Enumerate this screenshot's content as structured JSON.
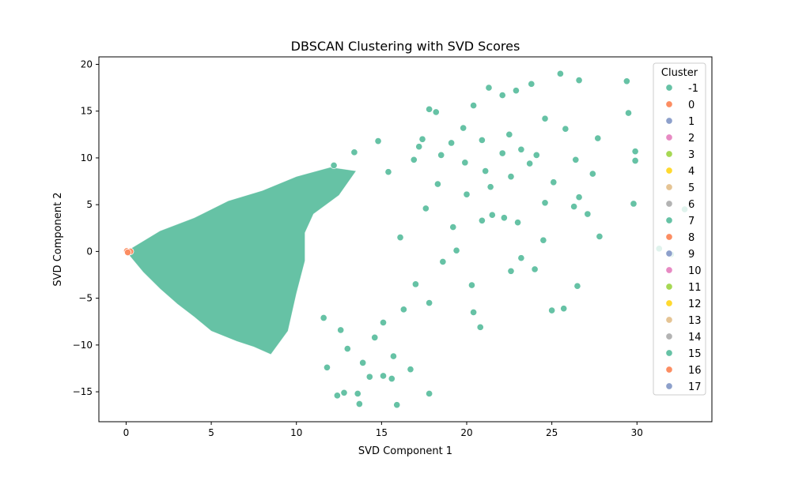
{
  "chart_data": {
    "type": "scatter",
    "title": "DBSCAN Clustering with SVD Scores",
    "xlabel": "SVD Component 1",
    "ylabel": "SVD Component 2",
    "xlim": [
      -1.6,
      34.4
    ],
    "ylim": [
      -18.2,
      20.8
    ],
    "xticks": [
      0,
      5,
      10,
      15,
      20,
      25,
      30
    ],
    "yticks": [
      -15,
      -10,
      -5,
      0,
      5,
      10,
      15,
      20
    ],
    "grid": false,
    "legend": {
      "title": "Cluster",
      "placement": "top-right",
      "entries": [
        {
          "label": "-1",
          "color": "#66c2a5"
        },
        {
          "label": "0",
          "color": "#fc8d62"
        },
        {
          "label": "1",
          "color": "#8da0cb"
        },
        {
          "label": "2",
          "color": "#e78ac3"
        },
        {
          "label": "3",
          "color": "#a6d854"
        },
        {
          "label": "4",
          "color": "#ffd92f"
        },
        {
          "label": "5",
          "color": "#e5c494"
        },
        {
          "label": "6",
          "color": "#b3b3b3"
        },
        {
          "label": "7",
          "color": "#66c2a5"
        },
        {
          "label": "8",
          "color": "#fc8d62"
        },
        {
          "label": "9",
          "color": "#8da0cb"
        },
        {
          "label": "10",
          "color": "#e78ac3"
        },
        {
          "label": "11",
          "color": "#a6d854"
        },
        {
          "label": "12",
          "color": "#ffd92f"
        },
        {
          "label": "13",
          "color": "#e5c494"
        },
        {
          "label": "14",
          "color": "#b3b3b3"
        },
        {
          "label": "15",
          "color": "#66c2a5"
        },
        {
          "label": "16",
          "color": "#fc8d62"
        },
        {
          "label": "17",
          "color": "#8da0cb"
        }
      ]
    },
    "series": [
      {
        "cluster": "-1",
        "color": "#66c2a5",
        "points": [
          [
            25.5,
            19.0
          ],
          [
            29.4,
            18.2
          ],
          [
            26.6,
            18.3
          ],
          [
            23.8,
            17.9
          ],
          [
            21.3,
            17.5
          ],
          [
            22.9,
            17.2
          ],
          [
            22.1,
            16.7
          ],
          [
            20.4,
            15.6
          ],
          [
            17.8,
            15.2
          ],
          [
            18.2,
            14.9
          ],
          [
            29.5,
            14.8
          ],
          [
            24.6,
            14.2
          ],
          [
            25.8,
            13.1
          ],
          [
            27.7,
            12.1
          ],
          [
            19.8,
            13.2
          ],
          [
            22.5,
            12.5
          ],
          [
            20.9,
            11.9
          ],
          [
            17.4,
            12.0
          ],
          [
            17.2,
            11.2
          ],
          [
            22.1,
            10.5
          ],
          [
            23.2,
            10.9
          ],
          [
            29.9,
            10.7
          ],
          [
            29.9,
            9.7
          ],
          [
            24.1,
            10.3
          ],
          [
            26.4,
            9.8
          ],
          [
            23.7,
            9.4
          ],
          [
            19.9,
            9.5
          ],
          [
            21.1,
            8.6
          ],
          [
            22.6,
            8.0
          ],
          [
            27.4,
            8.3
          ],
          [
            25.1,
            7.4
          ],
          [
            21.4,
            6.9
          ],
          [
            18.3,
            7.2
          ],
          [
            20.0,
            6.1
          ],
          [
            26.6,
            5.8
          ],
          [
            29.8,
            5.1
          ],
          [
            26.3,
            4.8
          ],
          [
            24.6,
            5.2
          ],
          [
            27.1,
            4.0
          ],
          [
            21.5,
            3.9
          ],
          [
            22.2,
            3.6
          ],
          [
            23.0,
            3.1
          ],
          [
            20.9,
            3.3
          ],
          [
            19.2,
            2.6
          ],
          [
            32.8,
            4.5
          ],
          [
            24.5,
            1.2
          ],
          [
            27.8,
            1.6
          ],
          [
            31.3,
            0.3
          ],
          [
            32.0,
            -0.3
          ],
          [
            23.2,
            -0.7
          ],
          [
            24.0,
            -1.9
          ],
          [
            22.6,
            -2.1
          ],
          [
            26.5,
            -3.7
          ],
          [
            20.3,
            -3.6
          ],
          [
            17.8,
            -5.5
          ],
          [
            20.4,
            -6.5
          ],
          [
            25.7,
            -6.1
          ],
          [
            25.0,
            -6.3
          ],
          [
            20.8,
            -8.1
          ],
          [
            15.1,
            -7.6
          ],
          [
            14.6,
            -9.2
          ],
          [
            13.0,
            -10.4
          ],
          [
            15.7,
            -11.2
          ],
          [
            13.9,
            -11.9
          ],
          [
            11.8,
            -12.4
          ],
          [
            14.3,
            -13.4
          ],
          [
            15.1,
            -13.3
          ],
          [
            15.6,
            -13.6
          ],
          [
            12.8,
            -15.1
          ],
          [
            13.6,
            -15.2
          ],
          [
            12.4,
            -15.4
          ],
          [
            17.8,
            -15.2
          ],
          [
            13.7,
            -16.3
          ],
          [
            15.9,
            -16.4
          ],
          [
            16.7,
            -12.6
          ],
          [
            12.6,
            -8.4
          ],
          [
            11.6,
            -7.1
          ],
          [
            16.3,
            -6.2
          ],
          [
            17.0,
            -3.5
          ],
          [
            18.6,
            -1.1
          ],
          [
            19.4,
            0.1
          ],
          [
            16.1,
            1.5
          ],
          [
            17.6,
            4.6
          ],
          [
            15.4,
            8.5
          ],
          [
            16.9,
            9.8
          ],
          [
            18.5,
            10.3
          ],
          [
            19.1,
            11.6
          ],
          [
            14.8,
            11.8
          ],
          [
            13.4,
            10.6
          ],
          [
            12.2,
            9.2
          ]
        ],
        "dense_fill": {
          "note": "core mass of overlapping points (approx. boundary in data units)",
          "outline": [
            [
              0.0,
              0.0
            ],
            [
              2.0,
              2.2
            ],
            [
              4.0,
              3.6
            ],
            [
              6.0,
              5.4
            ],
            [
              8.0,
              6.5
            ],
            [
              10.0,
              8.0
            ],
            [
              12.0,
              9.0
            ],
            [
              13.5,
              8.6
            ],
            [
              12.5,
              6.0
            ],
            [
              11.0,
              4.0
            ],
            [
              10.5,
              2.0
            ],
            [
              10.5,
              -1.0
            ],
            [
              10.0,
              -4.5
            ],
            [
              9.5,
              -8.5
            ],
            [
              8.5,
              -11.0
            ],
            [
              7.5,
              -10.2
            ],
            [
              6.5,
              -9.6
            ],
            [
              5.0,
              -8.5
            ],
            [
              4.0,
              -7.0
            ],
            [
              3.0,
              -5.6
            ],
            [
              2.0,
              -4.0
            ],
            [
              1.0,
              -2.2
            ]
          ]
        }
      },
      {
        "cluster": "0",
        "color": "#fc8d62",
        "points": [
          [
            0.05,
            0.05
          ],
          [
            0.15,
            -0.05
          ],
          [
            0.25,
            0.0
          ],
          [
            0.1,
            -0.1
          ]
        ]
      }
    ]
  }
}
